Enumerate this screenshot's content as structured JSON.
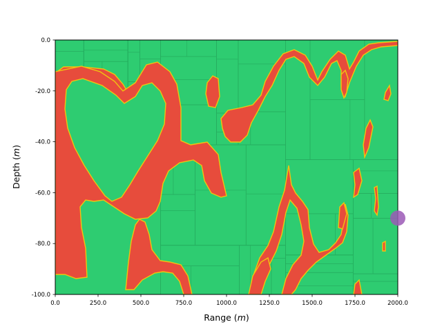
{
  "chart_data": {
    "type": "heatmap",
    "title": "",
    "xlabel_main": "Range (",
    "xlabel_unit": "m",
    "xlabel_close": ")",
    "ylabel_main": "Depth (",
    "ylabel_unit": "m",
    "ylabel_close": ")",
    "xlim": [
      0,
      2000
    ],
    "ylim": [
      -100,
      0
    ],
    "x_ticks": [
      0,
      250,
      500,
      750,
      1000,
      1250,
      1500,
      1750,
      2000
    ],
    "x_tick_labels": [
      "0.0",
      "250.0",
      "500.0",
      "750.0",
      "1000.0",
      "1250.0",
      "1500.0",
      "1750.0",
      "2000.0"
    ],
    "y_ticks": [
      0,
      -20,
      -40,
      -60,
      -80,
      -100
    ],
    "y_tick_labels": [
      "0.0",
      "-20.0",
      "-40.0",
      "-60.0",
      "-80.0",
      "-100.0"
    ],
    "grid": false,
    "colors": {
      "background_class": "#2ecc71",
      "channel_class": "#e74c3c",
      "boundary": "#f1c40f",
      "cell_edges": "#27ae60",
      "marker": "#9b59b6"
    },
    "marker": {
      "x": 2000,
      "y": -70
    }
  }
}
